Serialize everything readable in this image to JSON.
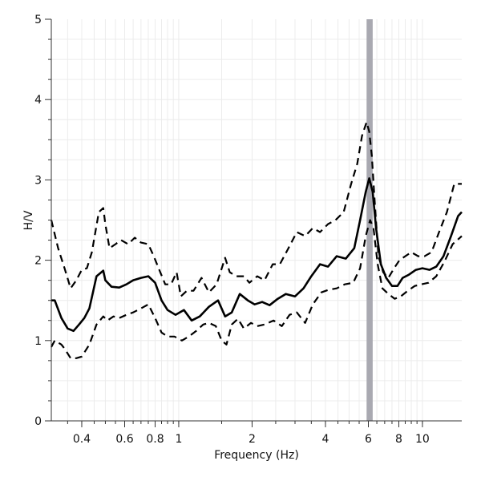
{
  "chart_data": {
    "type": "line",
    "xlabel": "Frequency (Hz)",
    "ylabel": "H/V",
    "x_scale": "log",
    "xlim": [
      0.3,
      14.5
    ],
    "ylim": [
      0,
      5
    ],
    "grid": true,
    "x_ticks": [
      {
        "value": 0.4,
        "label": "0.4"
      },
      {
        "value": 0.6,
        "label": "0.6"
      },
      {
        "value": 0.8,
        "label": "0.8"
      },
      {
        "value": 1,
        "label": "1"
      },
      {
        "value": 2,
        "label": "2"
      },
      {
        "value": 4,
        "label": "4"
      },
      {
        "value": 6,
        "label": "6"
      },
      {
        "value": 8,
        "label": "8"
      },
      {
        "value": 10,
        "label": "10"
      }
    ],
    "y_ticks": [
      {
        "value": 0,
        "label": "0"
      },
      {
        "value": 1,
        "label": "1"
      },
      {
        "value": 2,
        "label": "2"
      },
      {
        "value": 3,
        "label": "3"
      },
      {
        "value": 4,
        "label": "4"
      },
      {
        "value": 5,
        "label": "5"
      }
    ],
    "peak_band": {
      "x_min": 5.9,
      "x_max": 6.25,
      "color": "#a9a9b1"
    },
    "series": [
      {
        "style": "dashed",
        "x": [
          0.3,
          0.32,
          0.34,
          0.36,
          0.38,
          0.4,
          0.42,
          0.44,
          0.47,
          0.49,
          0.5,
          0.52,
          0.55,
          0.58,
          0.62,
          0.66,
          0.7,
          0.75,
          0.79,
          0.84,
          0.88,
          0.93,
          0.98,
          1.02,
          1.08,
          1.15,
          1.24,
          1.33,
          1.43,
          1.55,
          1.62,
          1.72,
          1.85,
          1.95,
          2.1,
          2.25,
          2.43,
          2.6,
          2.82,
          3.05,
          3.3,
          3.55,
          3.8,
          4.1,
          4.4,
          4.75,
          5.1,
          5.4,
          5.65,
          5.9,
          6.05,
          6.2,
          6.38,
          6.6,
          6.9,
          7.25,
          7.65,
          8.05,
          8.5,
          9.0,
          9.6,
          10.2,
          10.9,
          11.7,
          12.6,
          13.5,
          14.5
        ],
        "y": [
          2.5,
          2.15,
          1.9,
          1.65,
          1.75,
          1.88,
          1.9,
          2.1,
          2.6,
          2.65,
          2.45,
          2.15,
          2.2,
          2.25,
          2.2,
          2.28,
          2.22,
          2.2,
          2.05,
          1.85,
          1.7,
          1.7,
          1.85,
          1.55,
          1.62,
          1.62,
          1.78,
          1.6,
          1.7,
          2.03,
          1.85,
          1.8,
          1.8,
          1.72,
          1.8,
          1.75,
          1.95,
          1.95,
          2.15,
          2.35,
          2.3,
          2.4,
          2.35,
          2.45,
          2.5,
          2.6,
          2.95,
          3.2,
          3.55,
          3.72,
          3.6,
          3.3,
          2.7,
          2.05,
          1.85,
          1.78,
          1.9,
          2.0,
          2.05,
          2.1,
          2.05,
          2.05,
          2.1,
          2.35,
          2.6,
          2.95,
          2.95
        ]
      },
      {
        "style": "solid",
        "x": [
          0.3,
          0.31,
          0.33,
          0.35,
          0.37,
          0.39,
          0.41,
          0.43,
          0.46,
          0.49,
          0.5,
          0.53,
          0.57,
          0.61,
          0.65,
          0.7,
          0.75,
          0.8,
          0.85,
          0.9,
          0.97,
          1.05,
          1.13,
          1.22,
          1.33,
          1.45,
          1.55,
          1.65,
          1.78,
          1.92,
          2.05,
          2.2,
          2.36,
          2.55,
          2.75,
          3.0,
          3.25,
          3.5,
          3.8,
          4.1,
          4.45,
          4.85,
          5.25,
          5.55,
          5.85,
          6.05,
          6.25,
          6.45,
          6.75,
          7.1,
          7.5,
          7.9,
          8.3,
          8.8,
          9.4,
          10.0,
          10.7,
          11.4,
          12.2,
          13.1,
          14.0,
          14.5
        ],
        "y": [
          1.5,
          1.5,
          1.28,
          1.15,
          1.12,
          1.2,
          1.28,
          1.4,
          1.8,
          1.87,
          1.75,
          1.67,
          1.66,
          1.7,
          1.75,
          1.78,
          1.8,
          1.72,
          1.5,
          1.38,
          1.32,
          1.38,
          1.25,
          1.3,
          1.42,
          1.5,
          1.3,
          1.35,
          1.58,
          1.5,
          1.45,
          1.48,
          1.44,
          1.52,
          1.58,
          1.55,
          1.65,
          1.8,
          1.95,
          1.92,
          2.05,
          2.02,
          2.15,
          2.5,
          2.85,
          3.02,
          2.85,
          2.4,
          1.95,
          1.78,
          1.68,
          1.68,
          1.78,
          1.82,
          1.88,
          1.9,
          1.88,
          1.92,
          2.05,
          2.3,
          2.55,
          2.6
        ]
      },
      {
        "style": "dashed",
        "x": [
          0.3,
          0.31,
          0.33,
          0.34,
          0.36,
          0.38,
          0.4,
          0.43,
          0.46,
          0.49,
          0.51,
          0.54,
          0.57,
          0.61,
          0.65,
          0.7,
          0.75,
          0.8,
          0.85,
          0.9,
          0.96,
          1.03,
          1.1,
          1.18,
          1.26,
          1.33,
          1.42,
          1.5,
          1.57,
          1.65,
          1.75,
          1.85,
          1.98,
          2.1,
          2.25,
          2.45,
          2.65,
          2.85,
          3.05,
          3.3,
          3.55,
          3.85,
          4.1,
          4.45,
          4.8,
          5.2,
          5.55,
          5.85,
          6.1,
          6.3,
          6.55,
          6.85,
          7.25,
          7.7,
          8.15,
          8.7,
          9.3,
          9.9,
          10.6,
          11.4,
          12.3,
          13.3,
          14.5
        ],
        "y": [
          0.92,
          1.0,
          0.95,
          0.9,
          0.78,
          0.78,
          0.8,
          0.95,
          1.2,
          1.3,
          1.25,
          1.3,
          1.28,
          1.32,
          1.35,
          1.4,
          1.45,
          1.28,
          1.1,
          1.05,
          1.05,
          1.0,
          1.05,
          1.12,
          1.2,
          1.22,
          1.18,
          1.0,
          0.95,
          1.2,
          1.27,
          1.15,
          1.22,
          1.18,
          1.2,
          1.25,
          1.18,
          1.32,
          1.35,
          1.22,
          1.45,
          1.6,
          1.63,
          1.65,
          1.7,
          1.72,
          1.9,
          2.3,
          2.5,
          2.4,
          1.95,
          1.65,
          1.58,
          1.52,
          1.55,
          1.62,
          1.68,
          1.7,
          1.72,
          1.8,
          1.98,
          2.2,
          2.3
        ]
      }
    ]
  }
}
